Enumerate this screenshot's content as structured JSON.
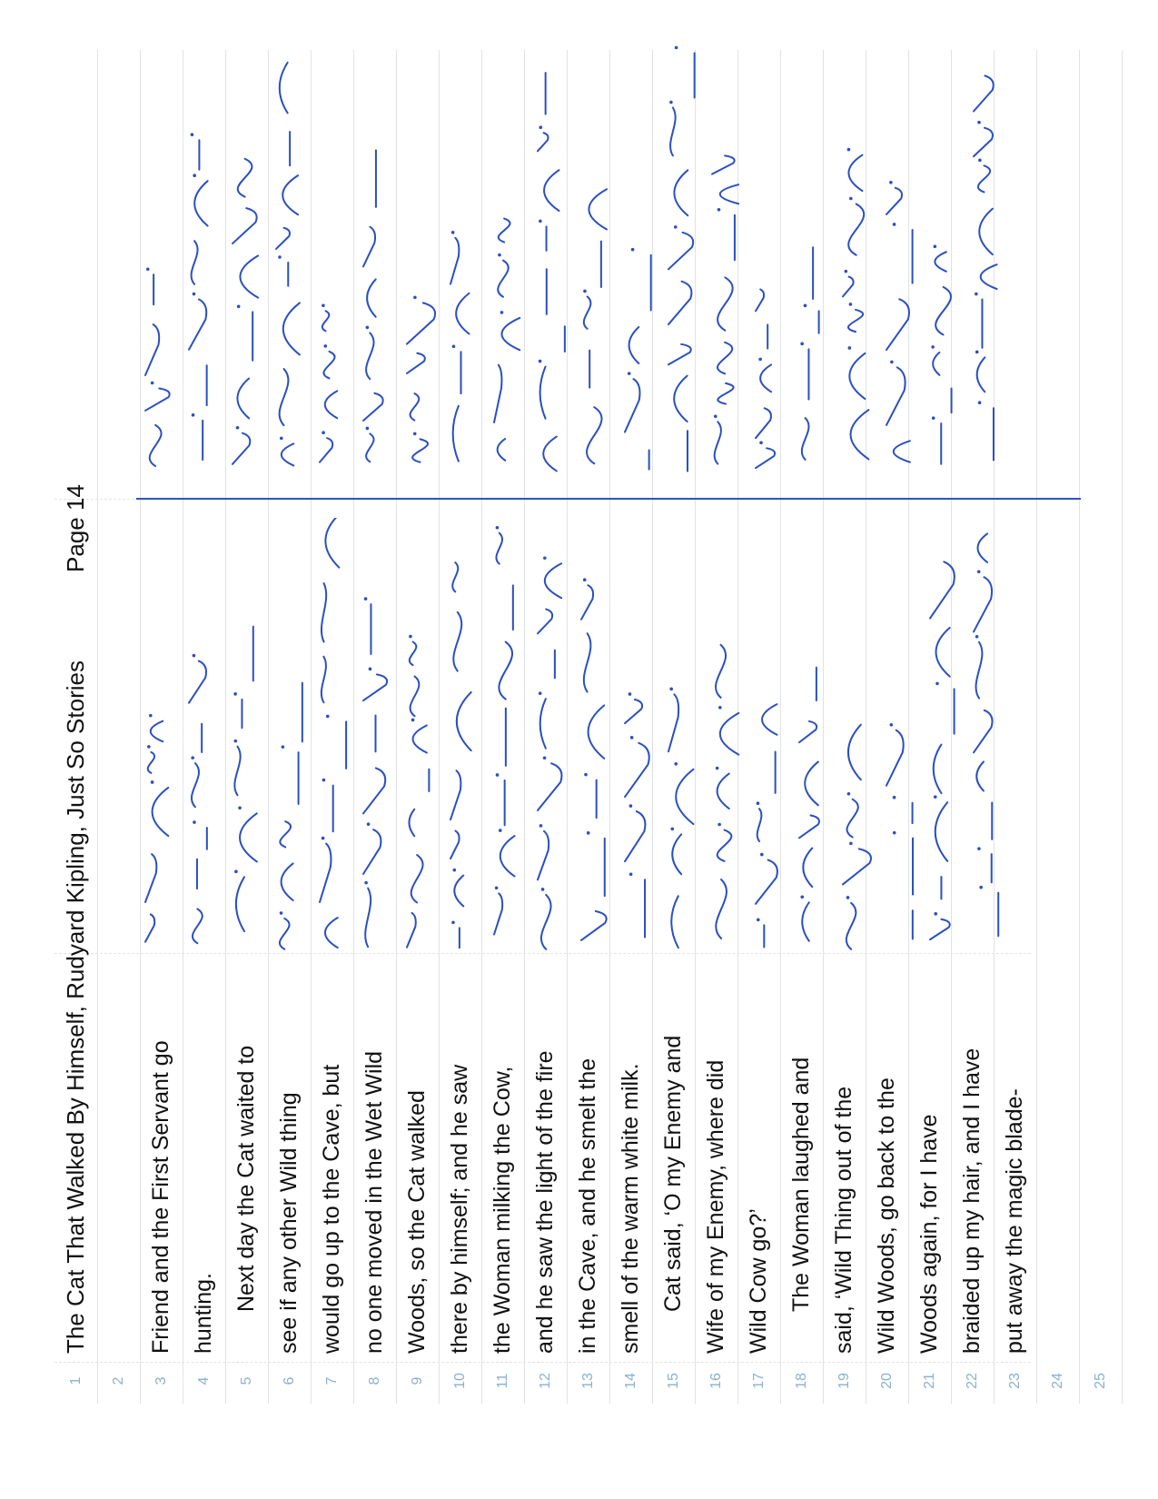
{
  "header": {
    "title": "The Cat That Walked By Himself, Rudyard Kipling, Just So Stories",
    "page": "Page 14"
  },
  "lines": [
    {
      "num": "1",
      "text": ""
    },
    {
      "num": "2",
      "text": ""
    },
    {
      "num": "3",
      "text": "Friend and the First Servant go",
      "indent": false
    },
    {
      "num": "4",
      "text": "hunting.",
      "indent": false
    },
    {
      "num": "5",
      "text": "Next day the Cat waited to",
      "indent": true
    },
    {
      "num": "6",
      "text": "see if any other Wild thing",
      "indent": false
    },
    {
      "num": "7",
      "text": "would go up to the Cave, but",
      "indent": false
    },
    {
      "num": "8",
      "text": "no one moved in the Wet Wild",
      "indent": false
    },
    {
      "num": "9",
      "text": "Woods, so the Cat walked",
      "indent": false
    },
    {
      "num": "10",
      "text": "there by himself; and he saw",
      "indent": false
    },
    {
      "num": "11",
      "text": "the Woman milking the Cow,",
      "indent": false
    },
    {
      "num": "12",
      "text": "and he saw the light of the fire",
      "indent": false
    },
    {
      "num": "13",
      "text": "in the Cave, and he smelt the",
      "indent": false
    },
    {
      "num": "14",
      "text": "smell of the warm white milk.",
      "indent": false
    },
    {
      "num": "15",
      "text": "Cat said, ‘O my Enemy and",
      "indent": true
    },
    {
      "num": "16",
      "text": "Wife of my Enemy, where did",
      "indent": false
    },
    {
      "num": "17",
      "text": "Wild Cow go?’",
      "indent": false
    },
    {
      "num": "18",
      "text": "The Woman laughed and",
      "indent": true
    },
    {
      "num": "19",
      "text": "said, ‘Wild Thing out of the",
      "indent": false
    },
    {
      "num": "20",
      "text": "Wild Woods, go back to the",
      "indent": false
    },
    {
      "num": "21",
      "text": "Woods again, for I have",
      "indent": false
    },
    {
      "num": "22",
      "text": "braided up my hair, and I have",
      "indent": false
    },
    {
      "num": "23",
      "text": "put away the magic blade-",
      "indent": false
    },
    {
      "num": "24",
      "text": ""
    },
    {
      "num": "25",
      "text": ""
    }
  ],
  "colors": {
    "ink": "#2a4fc0",
    "line_numbers": "#8ab0cf",
    "ruling": "#dfe2e6"
  }
}
